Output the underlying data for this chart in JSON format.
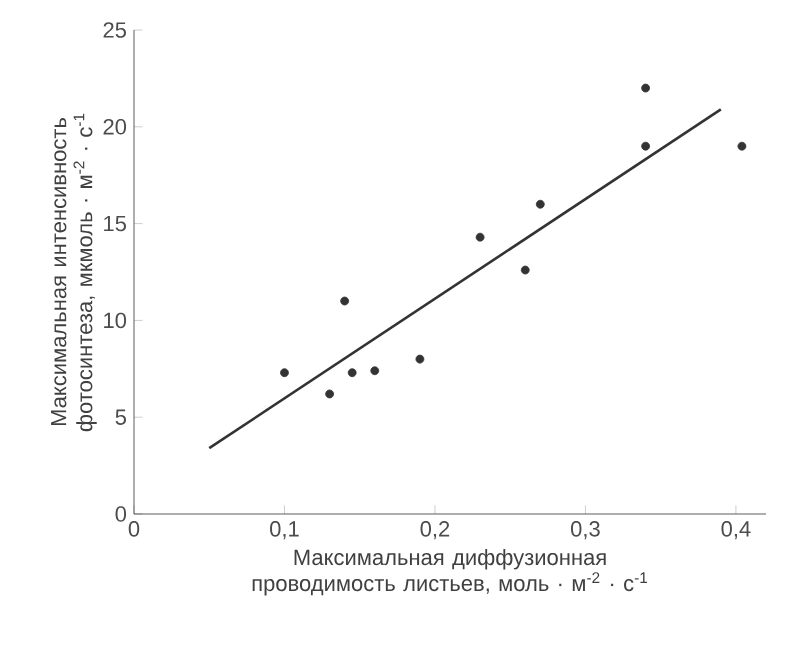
{
  "chart_data": {
    "type": "scatter",
    "xlabel": "Максимальная диффузионная проводимость листьев, моль · м$^{-2}$ · с$^{-1}$",
    "ylabel": "Максимальная интенсивность фотосинтеза, мкмоль · м$^{-2}$ · с$^{-1}$",
    "xlim": [
      0,
      0.42
    ],
    "ylim": [
      0,
      25
    ],
    "xticks": [
      0,
      {
        "value": 0.1,
        "label": "0,1"
      },
      {
        "value": 0.2,
        "label": "0,2"
      },
      {
        "value": 0.3,
        "label": "0,3"
      },
      {
        "value": 0.4,
        "label": "0,4"
      }
    ],
    "yticks": [
      0,
      5,
      10,
      15,
      20,
      25
    ],
    "grid": false,
    "series": [
      {
        "marker": "circle",
        "color": "#333333",
        "x": [
          0.1,
          0.13,
          0.14,
          0.145,
          0.16,
          0.19,
          0.23,
          0.26,
          0.27,
          0.34,
          0.34,
          0.404
        ],
        "values": [
          7.3,
          6.2,
          11,
          7.3,
          7.4,
          8.0,
          14.3,
          12.6,
          16,
          22,
          19,
          19
        ]
      },
      {
        "type": "line",
        "marker": "none",
        "color": "#333333",
        "x": [
          0.05,
          0.39
        ],
        "values": [
          3.4,
          20.9
        ]
      }
    ]
  }
}
